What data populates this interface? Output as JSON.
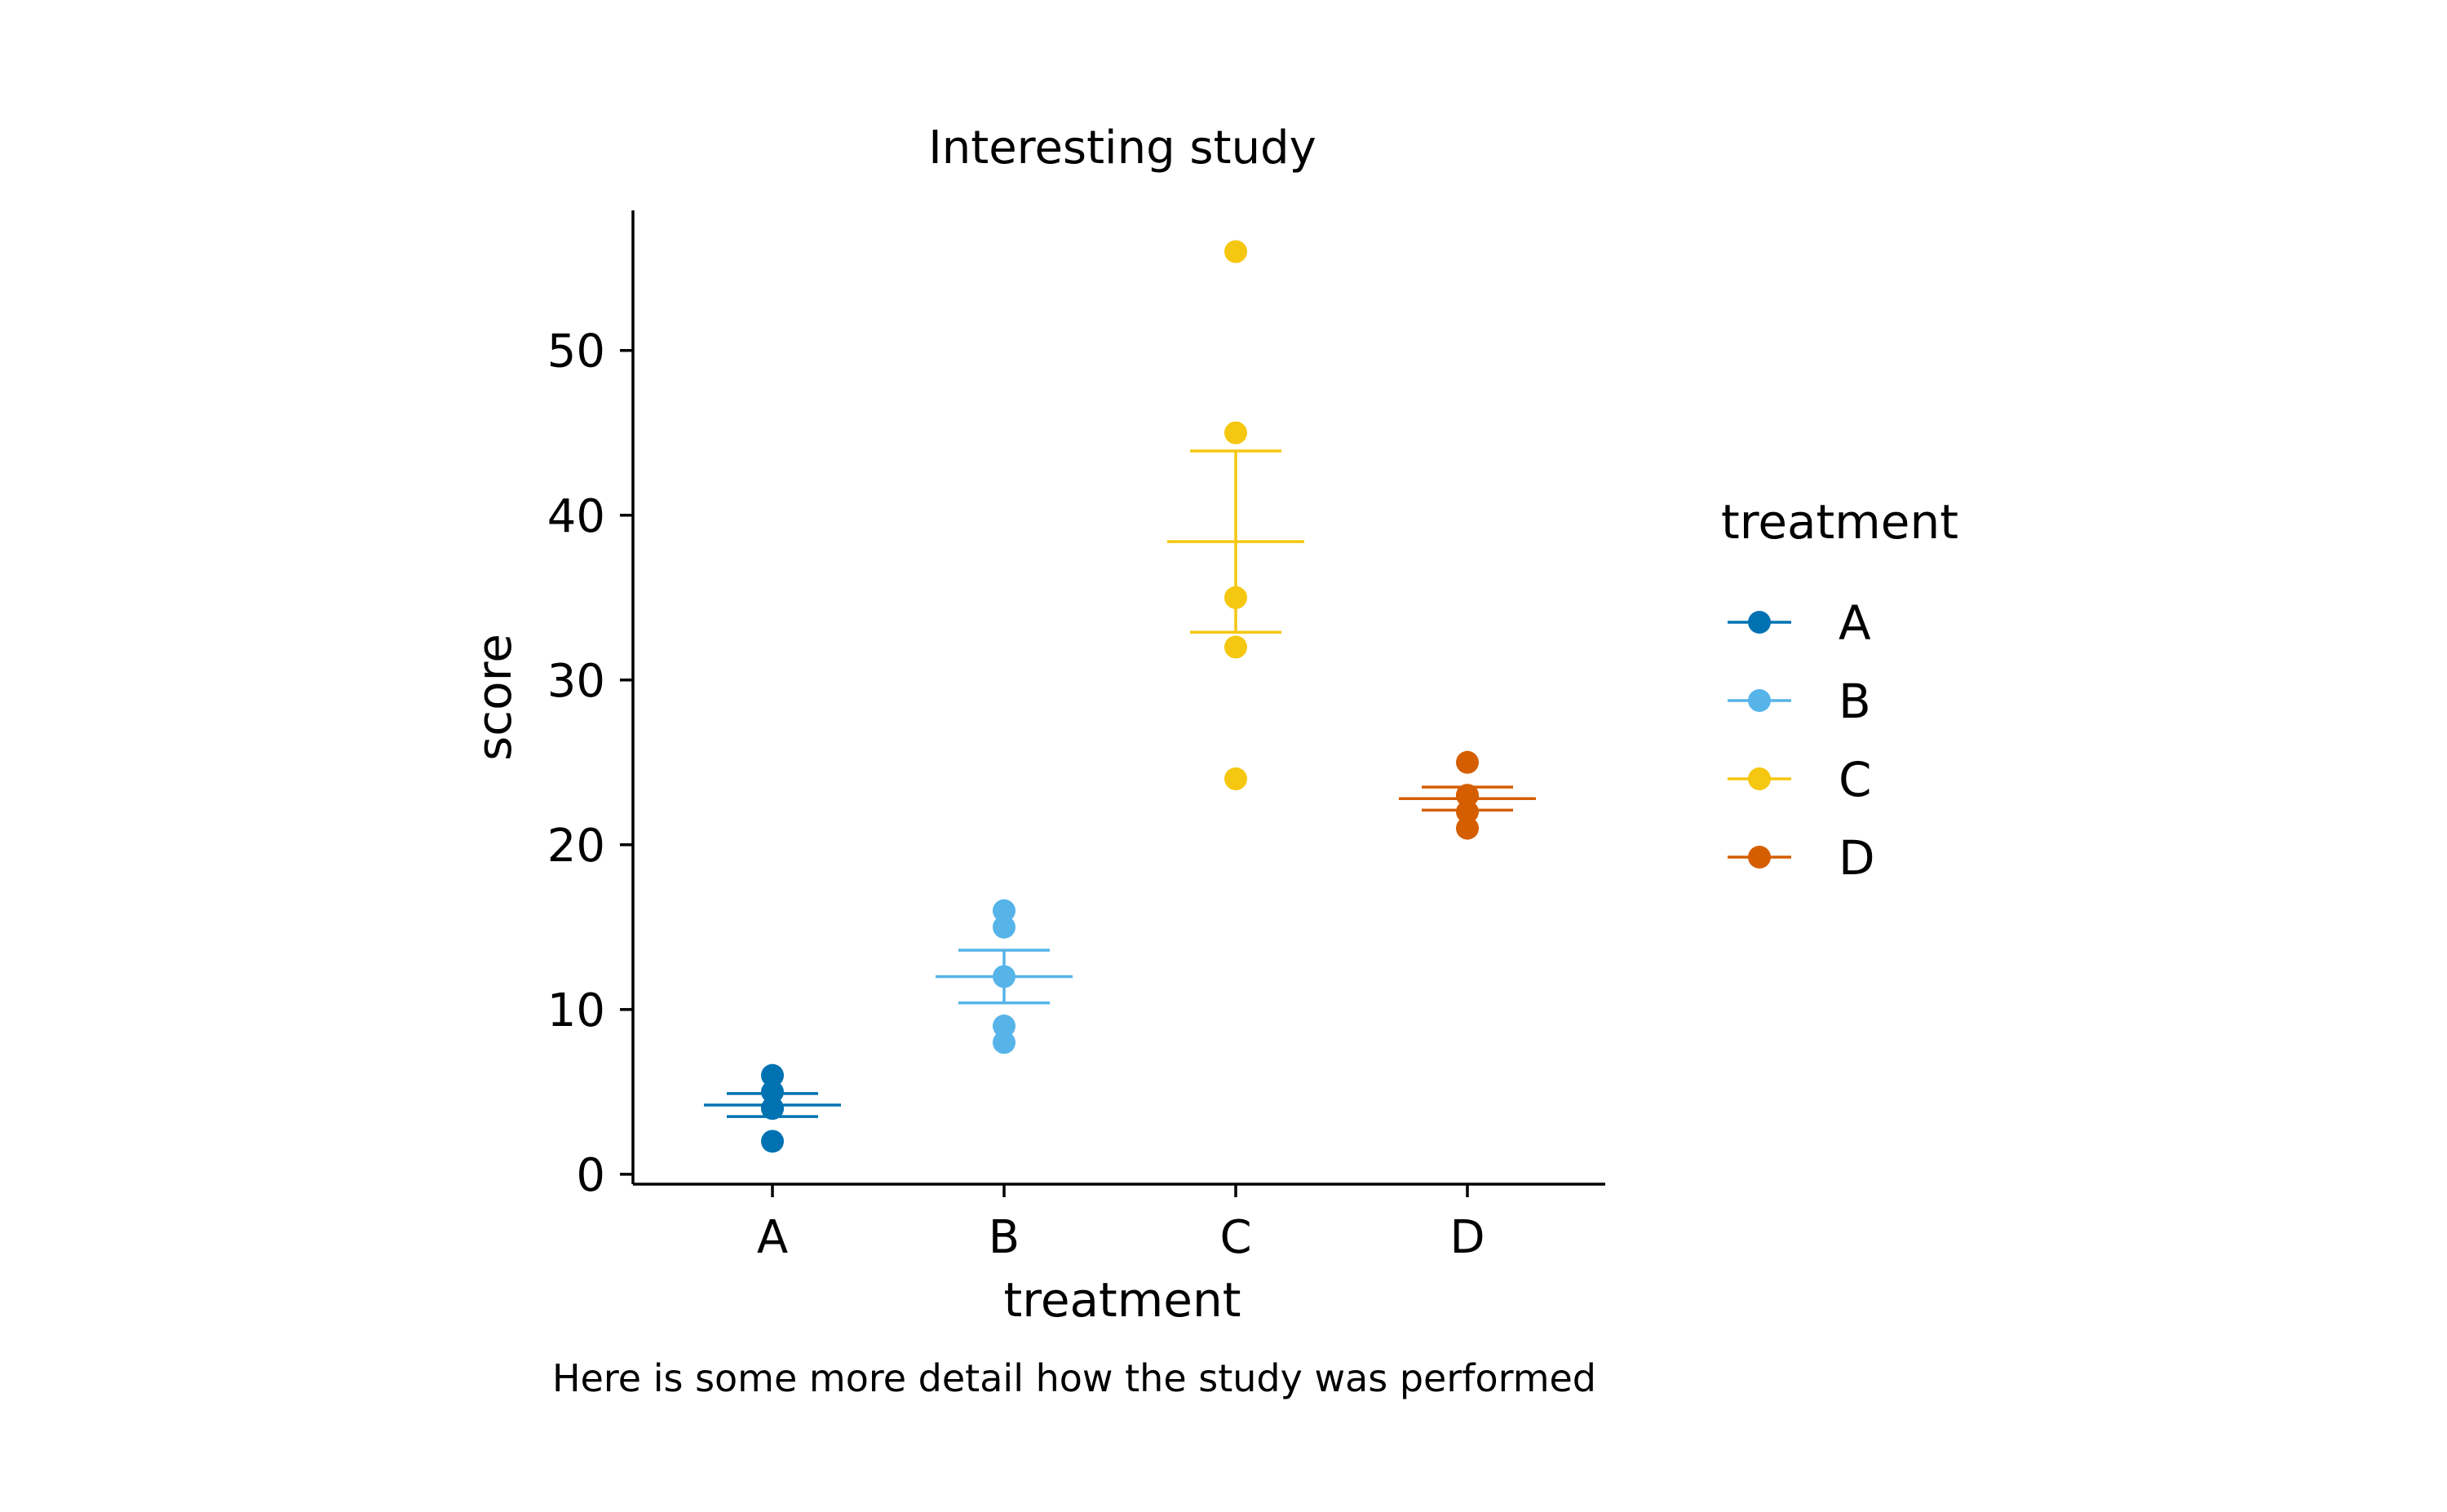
{
  "chart_data": {
    "type": "scatter",
    "title": "Interesting study",
    "xlabel": "treatment",
    "ylabel": "score",
    "caption": "Here is some more detail how the study was performed",
    "categories": [
      "A",
      "B",
      "C",
      "D"
    ],
    "ylim": [
      -0.6,
      58.5
    ],
    "yticks": [
      0,
      10,
      20,
      30,
      40,
      50
    ],
    "grid": false,
    "legend": {
      "title": "treatment",
      "position": "right"
    },
    "series": [
      {
        "name": "A",
        "color": "#0072B2",
        "points": [
          2,
          4,
          4,
          5,
          6
        ],
        "mean": 4.2,
        "se_low": 3.5,
        "se_high": 4.9
      },
      {
        "name": "B",
        "color": "#56B4E9",
        "points": [
          8,
          9,
          12,
          15,
          16
        ],
        "mean": 12.0,
        "se_low": 10.4,
        "se_high": 13.6
      },
      {
        "name": "C",
        "color": "#F5C710",
        "points": [
          24,
          32,
          35,
          45,
          56
        ],
        "mean": 38.4,
        "se_low": 32.9,
        "se_high": 43.9
      },
      {
        "name": "D",
        "color": "#D55E00",
        "points": [
          21,
          22,
          23,
          23,
          25
        ],
        "mean": 22.8,
        "se_low": 22.1,
        "se_high": 23.5
      }
    ]
  }
}
